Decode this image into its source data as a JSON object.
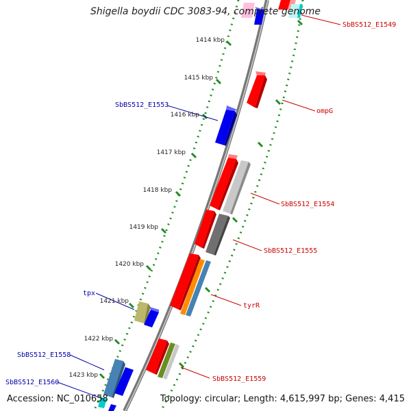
{
  "title": "Shigella boydii CDC 3083-94, complete genome",
  "accession": "Accession: NC_010658",
  "topology": "Topology: circular; Length: 4,615,997 bp; Genes: 4,415",
  "colors": {
    "backbone": "#888888",
    "tick_dots": "#228B22",
    "forward_label": "#cc0000",
    "reverse_label": "#0000aa",
    "gene_red": "#ff0000",
    "gene_blue": "#0000ee",
    "gene_gray_light": "#c8c8c8",
    "gene_gray_dark": "#707070",
    "gene_orange": "#ff8c00",
    "gene_steel": "#4682b4",
    "gene_khaki": "#bdb76b",
    "gene_olive": "#6b8e23",
    "gene_cyan": "#00cccc",
    "gene_pink": "#ffc0e0"
  },
  "scale_ticks": [
    "1414 kbp",
    "1415 kbp",
    "1416 kbp",
    "1417 kbp",
    "1418 kbp",
    "1419 kbp",
    "1420 kbp",
    "1421 kbp",
    "1422 kbp",
    "1423 kbp"
  ],
  "genes": [
    {
      "label": "SbBS512_E1549",
      "strand": "forward"
    },
    {
      "label": "ompG",
      "strand": "forward"
    },
    {
      "label": "SbBS512_E1553",
      "strand": "reverse"
    },
    {
      "label": "SbBS512_E1554",
      "strand": "forward"
    },
    {
      "label": "SbBS512_E1555",
      "strand": "forward"
    },
    {
      "label": "tyrR",
      "strand": "forward"
    },
    {
      "label": "tpx",
      "strand": "reverse"
    },
    {
      "label": "SbBS512_E1558",
      "strand": "reverse"
    },
    {
      "label": "SbBS512_E1559",
      "strand": "forward"
    },
    {
      "label": "SbBS512_E1560",
      "strand": "reverse"
    }
  ]
}
